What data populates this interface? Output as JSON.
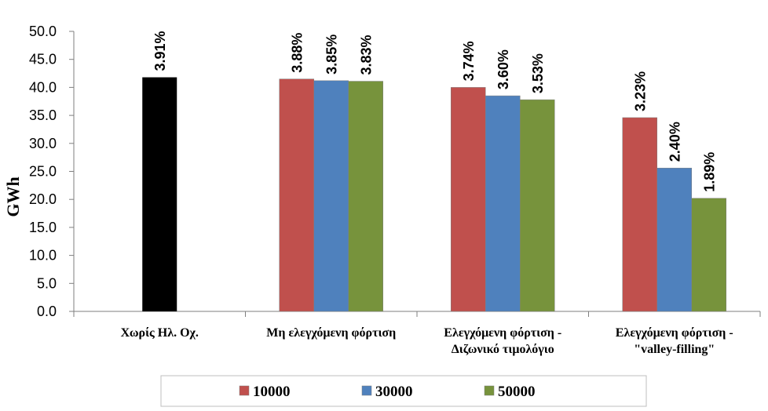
{
  "chart_data": {
    "type": "bar",
    "ylabel": "GWh",
    "ylim": [
      0,
      50
    ],
    "yticks": [
      "0.0",
      "5.0",
      "10.0",
      "15.0",
      "20.0",
      "25.0",
      "30.0",
      "35.0",
      "40.0",
      "45.0",
      "50.0"
    ],
    "grid": false,
    "legend_position": "bottom",
    "categories": [
      [
        "Χωρίς Ηλ. Οχ."
      ],
      [
        "Μη ελεγχόμενη φόρτιση"
      ],
      [
        "Ελεγχόμενη φόρτιση -",
        "Διζωνικό τιμολόγιο"
      ],
      [
        "Ελεγχόμενη φόρτιση -",
        "\"valley-filling\""
      ]
    ],
    "baseline": {
      "value": 41.8,
      "label": "3.91%",
      "color": "#000000"
    },
    "series": [
      {
        "name": "10000",
        "color": "#C0504D",
        "values": [
          null,
          41.5,
          40.0,
          34.6
        ],
        "labels": [
          "",
          "3.88%",
          "3.74%",
          "3.23%"
        ]
      },
      {
        "name": "30000",
        "color": "#4F81BD",
        "values": [
          null,
          41.2,
          38.5,
          25.6
        ],
        "labels": [
          "",
          "3.85%",
          "3.60%",
          "2.40%"
        ]
      },
      {
        "name": "50000",
        "color": "#77933C",
        "values": [
          null,
          41.1,
          37.8,
          20.2
        ],
        "labels": [
          "",
          "3.83%",
          "3.53%",
          "1.89%"
        ]
      }
    ]
  }
}
